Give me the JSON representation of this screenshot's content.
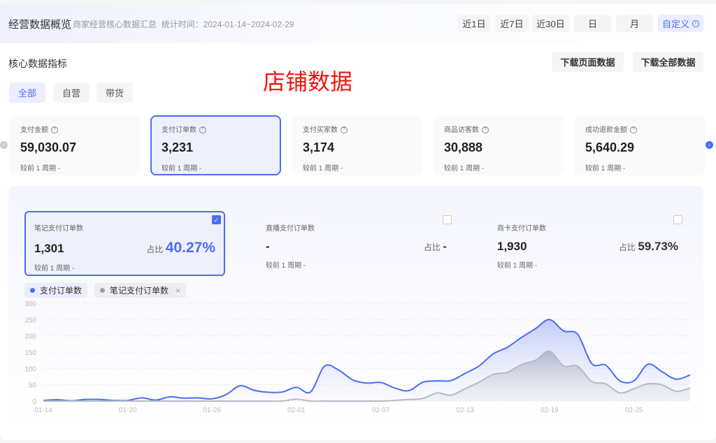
{
  "header": {
    "title": "经营数据概览",
    "subtitle": "商家经营核心数据汇总",
    "stat_time": "统计时间：2024-01-14~2024-02-29",
    "ranges": [
      "近1日",
      "近7日",
      "近30日",
      "日",
      "月",
      "自定义"
    ],
    "active_range": "自定义"
  },
  "section": {
    "title": "核心数据指标",
    "download_page": "下载页面数据",
    "download_all": "下载全部数据",
    "watermark": "店铺数据",
    "tabs": [
      "全部",
      "自营",
      "带货"
    ],
    "active_tab": "全部"
  },
  "cards": [
    {
      "label": "支付金额",
      "value": "59,030.07",
      "compare": "较前 1 周期",
      "delta": "-"
    },
    {
      "label": "支付订单数",
      "value": "3,231",
      "compare": "较前 1 周期",
      "delta": "-",
      "selected": true
    },
    {
      "label": "支付买家数",
      "value": "3,174",
      "compare": "较前 1 周期",
      "delta": "-"
    },
    {
      "label": "商品访客数",
      "value": "30,888",
      "compare": "较前 1 周期",
      "delta": "-"
    },
    {
      "label": "成功退款金额",
      "value": "5,640.29",
      "compare": "较前 1 周期",
      "delta": "-"
    }
  ],
  "breakdown": [
    {
      "label": "笔记支付订单数",
      "value": "1,301",
      "share_label": "占比",
      "share": "40.27%",
      "compare": "较前 1 周期",
      "delta": "-",
      "checked": true
    },
    {
      "label": "直播支付订单数",
      "value": "-",
      "share_label": "占比",
      "share": "-",
      "compare": "较前 1 周期",
      "delta": "-",
      "checked": false
    },
    {
      "label": "商卡支付订单数",
      "value": "1,930",
      "share_label": "占比",
      "share": "59.73%",
      "compare": "较前 1 周期",
      "delta": "-",
      "checked": false
    }
  ],
  "colors": {
    "accent": "#4a6cf7",
    "gray_series": "#a9acb8",
    "watermark": "#f0140f"
  },
  "chart_data": {
    "type": "area",
    "legend": [
      {
        "name": "支付订单数",
        "color": "#4a6cf7"
      },
      {
        "name": "笔记支付订单数",
        "color": "#a0a0a0",
        "removable": true
      }
    ],
    "x_ticks": [
      "01-14",
      "01-20",
      "01-26",
      "02-01",
      "02-07",
      "02-13",
      "02-19",
      "02-25"
    ],
    "x_start": "2024-01-14",
    "x_end": "2024-02-29",
    "y_ticks": [
      0,
      50,
      100,
      150,
      200,
      250,
      300
    ],
    "ylim": [
      0,
      300
    ],
    "grid": true,
    "series": [
      {
        "name": "支付订单数",
        "values": [
          2,
          4,
          1,
          5,
          5,
          2,
          2,
          10,
          3,
          13,
          9,
          10,
          7,
          20,
          47,
          33,
          27,
          28,
          42,
          28,
          107,
          95,
          65,
          55,
          57,
          40,
          32,
          58,
          62,
          63,
          85,
          108,
          145,
          165,
          195,
          222,
          250,
          215,
          205,
          115,
          110,
          62,
          62,
          113,
          90,
          67,
          80
        ]
      },
      {
        "name": "笔记支付订单数",
        "values": [
          0,
          0,
          0,
          0,
          0,
          0,
          0,
          0,
          0,
          0,
          0,
          0,
          0,
          0,
          0,
          0,
          0,
          0,
          6,
          0,
          0,
          0,
          0,
          0,
          0,
          2,
          5,
          8,
          25,
          18,
          38,
          58,
          82,
          88,
          112,
          125,
          153,
          108,
          107,
          60,
          53,
          25,
          38,
          53,
          50,
          30,
          40
        ]
      }
    ]
  }
}
